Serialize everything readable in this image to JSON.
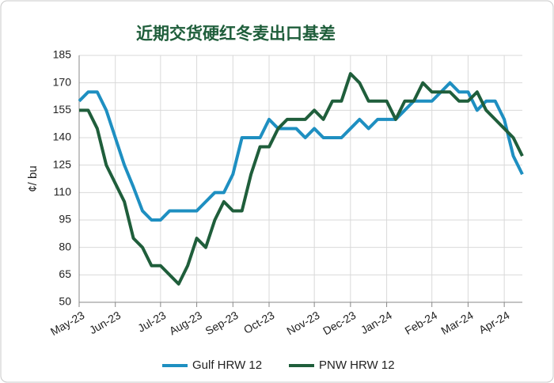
{
  "chart_data": {
    "type": "line",
    "title": "近期交货硬红冬麦出口基差",
    "y_label": "¢/ bu",
    "categories": [
      "May-23",
      null,
      null,
      null,
      "Jun-23",
      null,
      null,
      null,
      null,
      "Jul-23",
      null,
      null,
      null,
      "Aug-23",
      null,
      null,
      null,
      "Sep-23",
      null,
      null,
      null,
      "Oct-23",
      null,
      null,
      null,
      null,
      "Nov-23",
      null,
      null,
      null,
      "Dec-23",
      null,
      null,
      null,
      "Jan-24",
      null,
      null,
      null,
      null,
      "Feb-24",
      null,
      null,
      null,
      "Mar-24",
      null,
      null,
      null,
      "Apr-24",
      null,
      null
    ],
    "series": [
      {
        "name": "Gulf HRW 12",
        "color": "#1e8fc1",
        "values": [
          160,
          165,
          165,
          155,
          140,
          125,
          113,
          100,
          95,
          95,
          100,
          100,
          100,
          100,
          105,
          110,
          110,
          120,
          140,
          140,
          140,
          150,
          145,
          145,
          145,
          140,
          145,
          140,
          140,
          140,
          145,
          150,
          145,
          150,
          150,
          150,
          155,
          160,
          160,
          160,
          165,
          170,
          165,
          165,
          155,
          160,
          160,
          150,
          130,
          120
        ]
      },
      {
        "name": "PNW HRW 12",
        "color": "#1f5e3b",
        "values": [
          155,
          155,
          145,
          125,
          115,
          105,
          85,
          80,
          70,
          70,
          65,
          60,
          70,
          85,
          80,
          95,
          105,
          100,
          100,
          120,
          135,
          135,
          145,
          150,
          150,
          150,
          155,
          150,
          160,
          160,
          175,
          170,
          160,
          160,
          160,
          150,
          160,
          160,
          170,
          165,
          165,
          165,
          160,
          160,
          165,
          155,
          150,
          145,
          140,
          130
        ]
      }
    ],
    "ylim": [
      50,
      185
    ],
    "yticks": [
      50,
      65,
      80,
      95,
      110,
      125,
      140,
      155,
      170,
      185
    ],
    "grid": true,
    "legend": "bottom"
  }
}
